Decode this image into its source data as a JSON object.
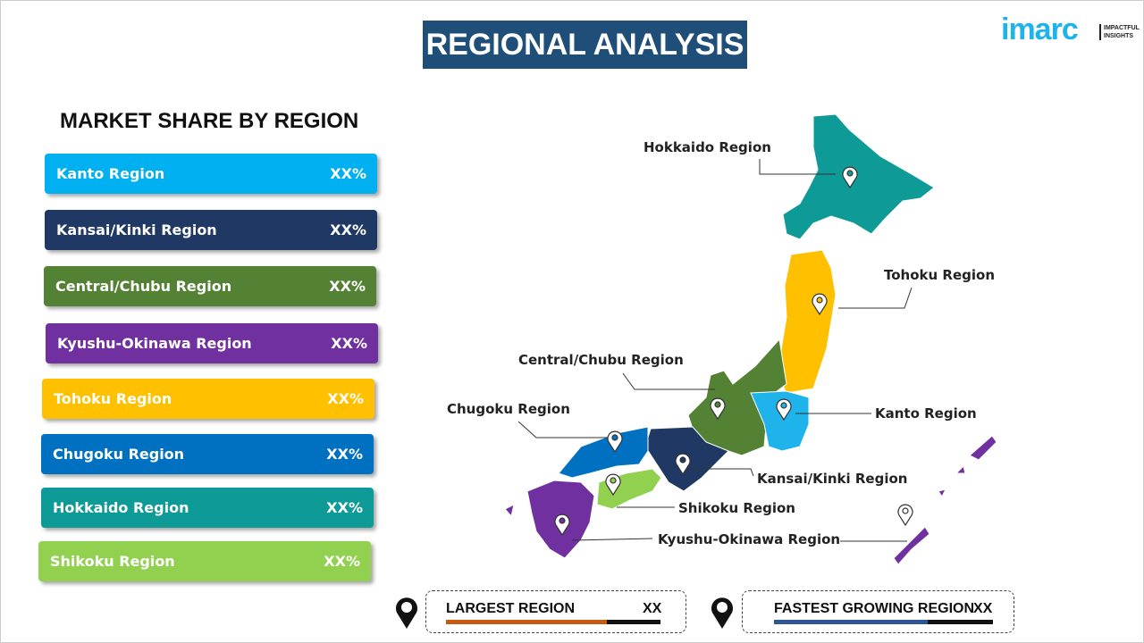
{
  "title": "REGIONAL ANALYSIS",
  "logo": {
    "brand": "imarc",
    "tagline_1": "IMPACTFUL",
    "tagline_2": "INSIGHTS"
  },
  "sidebar": {
    "title": "MARKET SHARE BY REGION",
    "items": [
      {
        "label": "Kanto Region",
        "value": "XX%",
        "color": "#00b0f0"
      },
      {
        "label": "Kansai/Kinki Region",
        "value": "XX%",
        "color": "#203864"
      },
      {
        "label": "Central/Chubu Region",
        "value": "XX%",
        "color": "#548235"
      },
      {
        "label": "Kyushu-Okinawa Region",
        "value": "XX%",
        "color": "#7030a0"
      },
      {
        "label": "Tohoku Region",
        "value": "XX%",
        "color": "#ffc000"
      },
      {
        "label": "Chugoku Region",
        "value": "XX%",
        "color": "#0070c0"
      },
      {
        "label": "Hokkaido Region",
        "value": "XX%",
        "color": "#0e9a96"
      },
      {
        "label": "Shikoku Region",
        "value": "XX%",
        "color": "#92d050"
      }
    ]
  },
  "map_labels": {
    "hokkaido": "Hokkaido Region",
    "tohoku": "Tohoku Region",
    "central": "Central/Chubu Region",
    "chugoku": "Chugoku Region",
    "kanto": "Kanto Region",
    "kansai": "Kansai/Kinki Region",
    "shikoku": "Shikoku Region",
    "kyushu": "Kyushu-Okinawa Region"
  },
  "summary": {
    "largest": {
      "label": "LARGEST REGION",
      "value": "XX",
      "color": "#c55a11"
    },
    "fastest": {
      "label": "FASTEST GROWING REGION",
      "value": "XX",
      "color": "#2f5597"
    }
  }
}
